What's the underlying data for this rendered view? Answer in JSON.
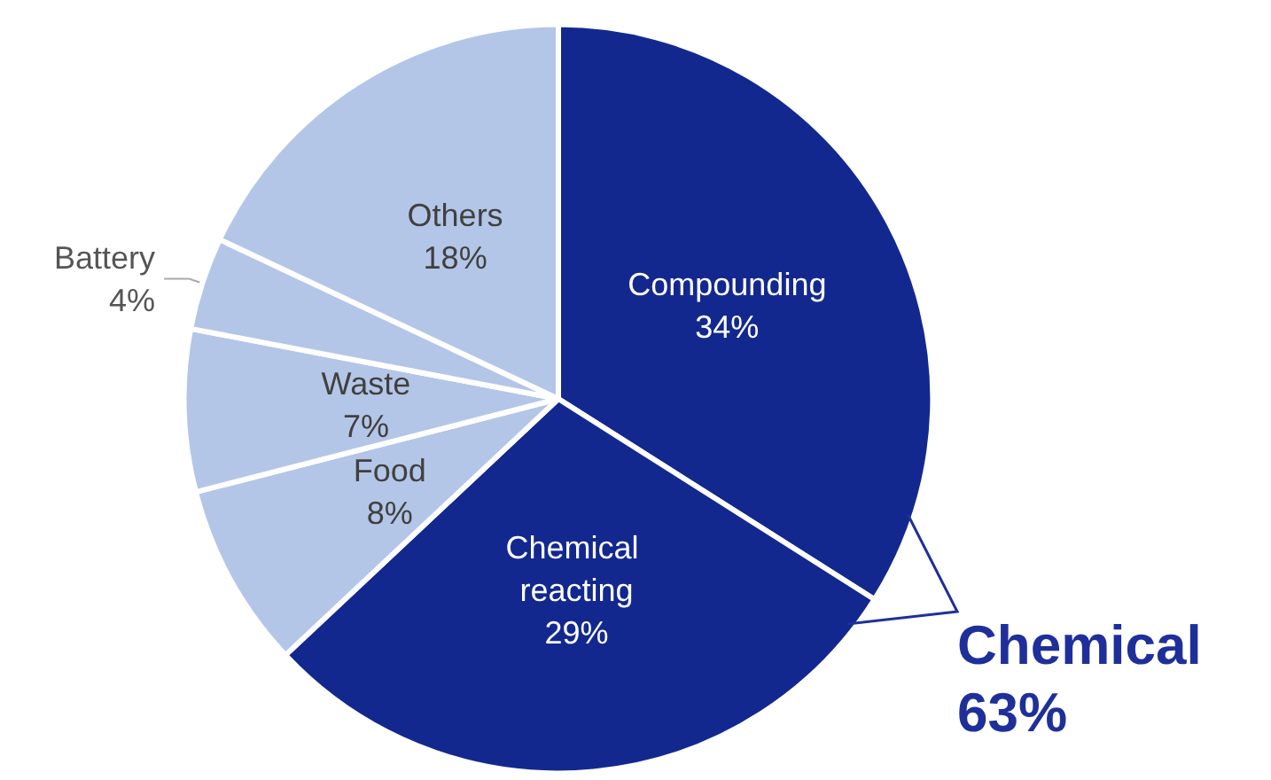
{
  "chart_data": {
    "type": "pie",
    "categories": [
      "Compounding",
      "Chemical reacting",
      "Food",
      "Waste",
      "Battery",
      "Others"
    ],
    "values": [
      34,
      29,
      8,
      7,
      4,
      18
    ],
    "colors": [
      "#13288f",
      "#13288f",
      "#b4c6e7",
      "#b4c6e7",
      "#b4c6e7",
      "#b4c6e7"
    ],
    "annotations": [
      "Chemical 63%"
    ],
    "value_labels": [
      "34%",
      "29%",
      "8%",
      "7%",
      "4%",
      "18%"
    ],
    "legend": false
  }
}
